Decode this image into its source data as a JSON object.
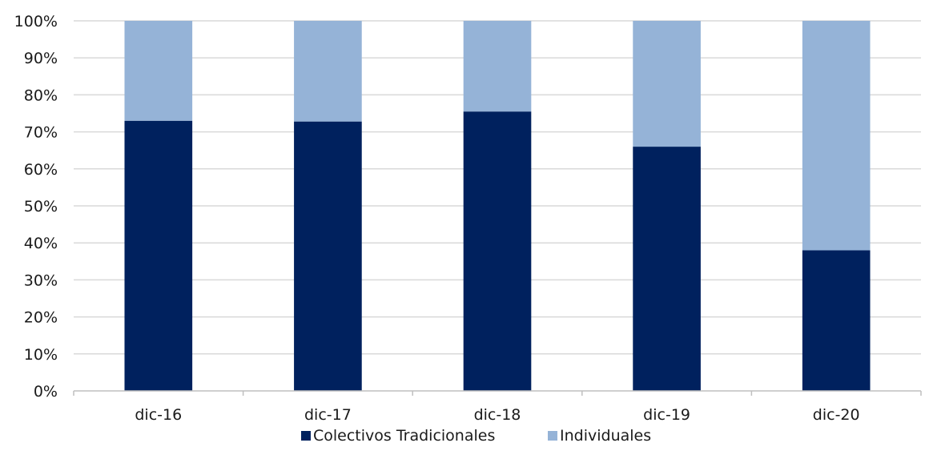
{
  "chart_data": {
    "type": "bar",
    "stacked": true,
    "percent": true,
    "categories": [
      "dic-16",
      "dic-17",
      "dic-18",
      "dic-19",
      "dic-20"
    ],
    "series": [
      {
        "name": "Colectivos Tradicionales",
        "color": "#00215e",
        "values": [
          73,
          72.8,
          75.5,
          66,
          38
        ]
      },
      {
        "name": "Individuales",
        "color": "#95b3d7",
        "values": [
          27,
          27.2,
          24.5,
          34,
          62
        ]
      }
    ],
    "yticks": [
      "0%",
      "10%",
      "20%",
      "30%",
      "40%",
      "50%",
      "60%",
      "70%",
      "80%",
      "90%",
      "100%"
    ],
    "ylim": [
      0,
      100
    ],
    "grid": true,
    "legend": "bottom",
    "title": "",
    "xlabel": "",
    "ylabel": ""
  }
}
